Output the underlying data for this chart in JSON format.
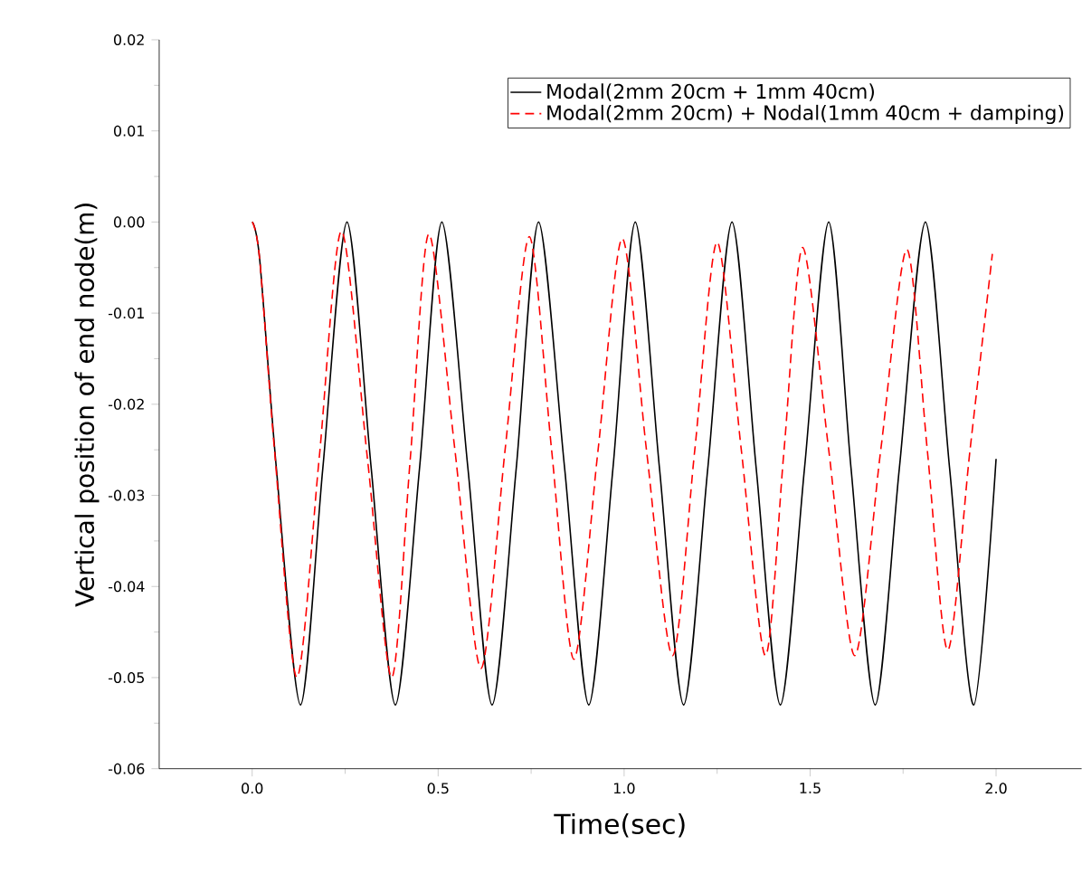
{
  "chart_data": {
    "type": "line",
    "xlabel": "Time(sec)",
    "ylabel": "Vertical position of end node(m)",
    "xlim": [
      -0.25,
      2.23
    ],
    "ylim": [
      -0.06,
      0.02
    ],
    "xticks": [
      {
        "value": 0,
        "label": "0.0"
      },
      {
        "value": 0.5,
        "label": "0.5"
      },
      {
        "value": 1,
        "label": "1.0"
      },
      {
        "value": 1.5,
        "label": "1.5"
      },
      {
        "value": 2,
        "label": "2.0"
      }
    ],
    "yticks": [
      {
        "value": -0.06,
        "label": "-0.06"
      },
      {
        "value": -0.05,
        "label": "-0.05"
      },
      {
        "value": -0.04,
        "label": "-0.04"
      },
      {
        "value": -0.03,
        "label": "-0.03"
      },
      {
        "value": -0.02,
        "label": "-0.02"
      },
      {
        "value": -0.01,
        "label": "-0.01"
      },
      {
        "value": 0,
        "label": "0.00"
      },
      {
        "value": 0.01,
        "label": "0.01"
      },
      {
        "value": 0.02,
        "label": "0.02"
      }
    ],
    "legend": "top right",
    "marker": "none",
    "series": [
      {
        "name": "Modal(2mm 20cm + 1mm 40cm)",
        "color": "#000000",
        "line_style": "solid",
        "x": [
          0,
          0.02,
          0.065,
          0.13,
          0.19,
          0.255,
          0.32,
          0.385,
          0.45,
          0.51,
          0.58,
          0.645,
          0.71,
          0.77,
          0.84,
          0.905,
          0.97,
          1.03,
          1.095,
          1.16,
          1.225,
          1.29,
          1.355,
          1.42,
          1.485,
          1.55,
          1.61,
          1.675,
          1.74,
          1.81,
          1.875,
          1.94,
          2.0
        ],
        "values": [
          0,
          -0.004,
          -0.027,
          -0.053,
          -0.027,
          0,
          -0.027,
          -0.053,
          -0.027,
          0,
          -0.027,
          -0.053,
          -0.027,
          0,
          -0.027,
          -0.053,
          -0.027,
          0,
          -0.027,
          -0.053,
          -0.027,
          0,
          -0.027,
          -0.053,
          -0.027,
          0,
          -0.027,
          -0.053,
          -0.027,
          0,
          -0.027,
          -0.053,
          -0.026
        ]
      },
      {
        "name": "Modal(2mm 20cm) + Nodal(1mm 40cm + damping)",
        "color": "#ff0000",
        "line_style": "dashed",
        "x": [
          0,
          0.02,
          0.06,
          0.12,
          0.18,
          0.24,
          0.31,
          0.375,
          0.425,
          0.475,
          0.545,
          0.615,
          0.68,
          0.745,
          0.805,
          0.865,
          0.93,
          0.995,
          1.06,
          1.13,
          1.19,
          1.25,
          1.315,
          1.38,
          1.43,
          1.48,
          1.55,
          1.62,
          1.69,
          1.76,
          1.815,
          1.87,
          1.93,
          1.99
        ],
        "values": [
          0,
          -0.004,
          -0.025,
          -0.05,
          -0.026,
          -0.001,
          -0.026,
          -0.05,
          -0.026,
          -0.0013,
          -0.025,
          -0.049,
          -0.025,
          -0.0016,
          -0.025,
          -0.048,
          -0.025,
          -0.0018,
          -0.025,
          -0.0476,
          -0.025,
          -0.0022,
          -0.025,
          -0.0476,
          -0.025,
          -0.0028,
          -0.025,
          -0.0476,
          -0.025,
          -0.003,
          -0.025,
          -0.047,
          -0.025,
          -0.0035
        ]
      }
    ]
  }
}
